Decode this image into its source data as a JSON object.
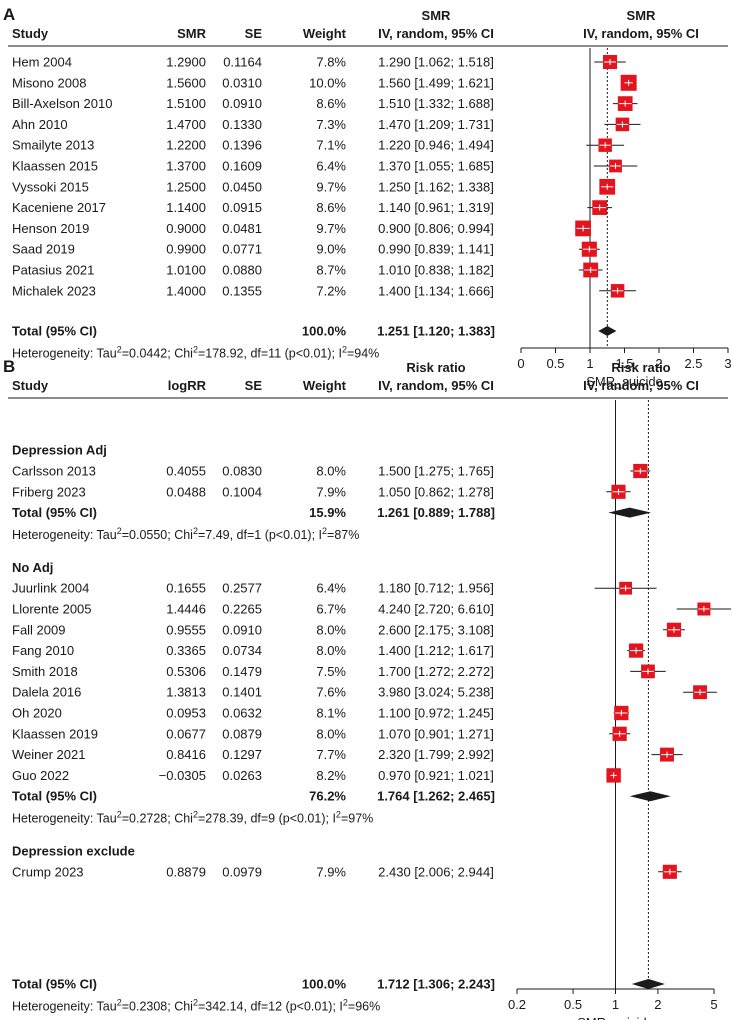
{
  "chart_data": [
    {
      "type": "forest",
      "panel_label": "A",
      "headers": {
        "study": "Study",
        "estimate": "SMR",
        "se": "SE",
        "weight": "Weight",
        "ci_line1": "SMR",
        "ci_line2": "IV, random, 95% CI",
        "plot_line1": "SMR",
        "plot_line2": "IV, random, 95% CI"
      },
      "groups": [
        {
          "name": "",
          "studies": [
            {
              "study": "Hem 2004",
              "est": "1.2900",
              "se": "0.1164",
              "weight": "7.8%",
              "ci": "1.290 [1.062; 1.518]",
              "point": 1.29,
              "lo": 1.062,
              "hi": 1.518,
              "w": 7.8
            },
            {
              "study": "Misono 2008",
              "est": "1.5600",
              "se": "0.0310",
              "weight": "10.0%",
              "ci": "1.560 [1.499; 1.621]",
              "point": 1.56,
              "lo": 1.499,
              "hi": 1.621,
              "w": 10.0
            },
            {
              "study": "Bill-Axelson 2010",
              "est": "1.5100",
              "se": "0.0910",
              "weight": "8.6%",
              "ci": "1.510 [1.332; 1.688]",
              "point": 1.51,
              "lo": 1.332,
              "hi": 1.688,
              "w": 8.6
            },
            {
              "study": "Ahn 2010",
              "est": "1.4700",
              "se": "0.1330",
              "weight": "7.3%",
              "ci": "1.470 [1.209; 1.731]",
              "point": 1.47,
              "lo": 1.209,
              "hi": 1.731,
              "w": 7.3
            },
            {
              "study": "Smailyte 2013",
              "est": "1.2200",
              "se": "0.1396",
              "weight": "7.1%",
              "ci": "1.220 [0.946; 1.494]",
              "point": 1.22,
              "lo": 0.946,
              "hi": 1.494,
              "w": 7.1
            },
            {
              "study": "Klaassen 2015",
              "est": "1.3700",
              "se": "0.1609",
              "weight": "6.4%",
              "ci": "1.370 [1.055; 1.685]",
              "point": 1.37,
              "lo": 1.055,
              "hi": 1.685,
              "w": 6.4
            },
            {
              "study": "Vyssoki 2015",
              "est": "1.2500",
              "se": "0.0450",
              "weight": "9.7%",
              "ci": "1.250 [1.162; 1.338]",
              "point": 1.25,
              "lo": 1.162,
              "hi": 1.338,
              "w": 9.7
            },
            {
              "study": "Kaceniene 2017",
              "est": "1.1400",
              "se": "0.0915",
              "weight": "8.6%",
              "ci": "1.140 [0.961; 1.319]",
              "point": 1.14,
              "lo": 0.961,
              "hi": 1.319,
              "w": 8.6
            },
            {
              "study": "Henson 2019",
              "est": "0.9000",
              "se": "0.0481",
              "weight": "9.7%",
              "ci": "0.900 [0.806; 0.994]",
              "point": 0.9,
              "lo": 0.806,
              "hi": 0.994,
              "w": 9.7
            },
            {
              "study": "Saad 2019",
              "est": "0.9900",
              "se": "0.0771",
              "weight": "9.0%",
              "ci": "0.990 [0.839; 1.141]",
              "point": 0.99,
              "lo": 0.839,
              "hi": 1.141,
              "w": 9.0
            },
            {
              "study": "Patasius 2021",
              "est": "1.0100",
              "se": "0.0880",
              "weight": "8.7%",
              "ci": "1.010 [0.838; 1.182]",
              "point": 1.01,
              "lo": 0.838,
              "hi": 1.182,
              "w": 8.7
            },
            {
              "study": "Michalek 2023",
              "est": "1.4000",
              "se": "0.1355",
              "weight": "7.2%",
              "ci": "1.400 [1.134; 1.666]",
              "point": 1.4,
              "lo": 1.134,
              "hi": 1.666,
              "w": 7.2
            }
          ]
        }
      ],
      "overall": {
        "label": "Total (95% CI)",
        "weight": "100.0%",
        "ci": "1.251 [1.120; 1.383]",
        "point": 1.251,
        "lo": 1.12,
        "hi": 1.383,
        "heterogeneity": {
          "prefix": "Heterogeneity: Tau",
          "tau2": "=0.0442; Chi",
          "chi2": "=178.92, df=11 (p<0.01); I",
          "i2": "=94%",
          "sup": "2"
        }
      },
      "axis": {
        "scale": "linear",
        "min": 0,
        "max": 3,
        "ticks": [
          "0",
          "0.5",
          "1",
          "1.5",
          "2",
          "2.5",
          "3"
        ],
        "tick_values": [
          0,
          0.5,
          1,
          1.5,
          2,
          2.5,
          3
        ],
        "reference": 1,
        "label": "SMR_suicide"
      }
    },
    {
      "type": "forest",
      "panel_label": "B",
      "headers": {
        "study": "Study",
        "estimate": "logRR",
        "se": "SE",
        "weight": "Weight",
        "ci_line1": "Risk ratio",
        "ci_line2": "IV, random, 95% CI",
        "plot_line1": "Risk ratio",
        "plot_line2": "IV, random, 95% CI"
      },
      "groups": [
        {
          "name": "Depression Adj",
          "studies": [
            {
              "study": "Carlsson 2013",
              "est": "0.4055",
              "se": "0.0830",
              "weight": "8.0%",
              "ci": "1.500 [1.275; 1.765]",
              "point": 1.5,
              "lo": 1.275,
              "hi": 1.765,
              "w": 8.0
            },
            {
              "study": "Friberg 2023",
              "est": "0.0488",
              "se": "0.1004",
              "weight": "7.9%",
              "ci": "1.050 [0.862; 1.278]",
              "point": 1.05,
              "lo": 0.862,
              "hi": 1.278,
              "w": 7.9
            }
          ],
          "total": {
            "label": "Total (95% CI)",
            "weight": "15.9%",
            "ci": "1.261 [0.889; 1.788]",
            "point": 1.261,
            "lo": 0.889,
            "hi": 1.788
          },
          "heterogeneity": {
            "prefix": "Heterogeneity: Tau",
            "tau2": "=0.0550; Chi",
            "chi2": "=7.49, df=1 (p<0.01); I",
            "i2": "=87%",
            "sup": "2"
          }
        },
        {
          "name": "No Adj",
          "studies": [
            {
              "study": "Juurlink 2004",
              "est": "0.1655",
              "se": "0.2577",
              "weight": "6.4%",
              "ci": "1.180 [0.712; 1.956]",
              "point": 1.18,
              "lo": 0.712,
              "hi": 1.956,
              "w": 6.4
            },
            {
              "study": "Llorente 2005",
              "est": "1.4446",
              "se": "0.2265",
              "weight": "6.7%",
              "ci": "4.240 [2.720; 6.610]",
              "point": 4.24,
              "lo": 2.72,
              "hi": 6.61,
              "w": 6.7
            },
            {
              "study": "Fall 2009",
              "est": "0.9555",
              "se": "0.0910",
              "weight": "8.0%",
              "ci": "2.600 [2.175; 3.108]",
              "point": 2.6,
              "lo": 2.175,
              "hi": 3.108,
              "w": 8.0
            },
            {
              "study": "Fang 2010",
              "est": "0.3365",
              "se": "0.0734",
              "weight": "8.0%",
              "ci": "1.400 [1.212; 1.617]",
              "point": 1.4,
              "lo": 1.212,
              "hi": 1.617,
              "w": 8.0
            },
            {
              "study": "Smith 2018",
              "est": "0.5306",
              "se": "0.1479",
              "weight": "7.5%",
              "ci": "1.700 [1.272; 2.272]",
              "point": 1.7,
              "lo": 1.272,
              "hi": 2.272,
              "w": 7.5
            },
            {
              "study": "Dalela 2016",
              "est": "1.3813",
              "se": "0.1401",
              "weight": "7.6%",
              "ci": "3.980 [3.024; 5.238]",
              "point": 3.98,
              "lo": 3.024,
              "hi": 5.238,
              "w": 7.6
            },
            {
              "study": "Oh 2020",
              "est": "0.0953",
              "se": "0.0632",
              "weight": "8.1%",
              "ci": "1.100 [0.972; 1.245]",
              "point": 1.1,
              "lo": 0.972,
              "hi": 1.245,
              "w": 8.1
            },
            {
              "study": "Klaassen 2019",
              "est": "0.0677",
              "se": "0.0879",
              "weight": "8.0%",
              "ci": "1.070 [0.901; 1.271]",
              "point": 1.07,
              "lo": 0.901,
              "hi": 1.271,
              "w": 8.0
            },
            {
              "study": "Weiner 2021",
              "est": "0.8416",
              "se": "0.1297",
              "weight": "7.7%",
              "ci": "2.320 [1.799; 2.992]",
              "point": 2.32,
              "lo": 1.799,
              "hi": 2.992,
              "w": 7.7
            },
            {
              "study": "Guo 2022",
              "est": "−0.0305",
              "se": "0.0263",
              "weight": "8.2%",
              "ci": "0.970 [0.921; 1.021]",
              "point": 0.97,
              "lo": 0.921,
              "hi": 1.021,
              "w": 8.2
            }
          ],
          "total": {
            "label": "Total (95% CI)",
            "weight": "76.2%",
            "ci": "1.764 [1.262; 2.465]",
            "point": 1.764,
            "lo": 1.262,
            "hi": 2.465
          },
          "heterogeneity": {
            "prefix": "Heterogeneity: Tau",
            "tau2": "=0.2728; Chi",
            "chi2": "=278.39, df=9 (p<0.01); I",
            "i2": "=97%",
            "sup": "2"
          }
        },
        {
          "name": "Depression exclude",
          "studies": [
            {
              "study": "Crump 2023",
              "est": "0.8879",
              "se": "0.0979",
              "weight": "7.9%",
              "ci": "2.430 [2.006; 2.944]",
              "point": 2.43,
              "lo": 2.006,
              "hi": 2.944,
              "w": 7.9
            }
          ]
        }
      ],
      "overall": {
        "label": "Total (95% CI)",
        "weight": "100.0%",
        "ci": "1.712 [1.306; 2.243]",
        "point": 1.712,
        "lo": 1.306,
        "hi": 2.243,
        "heterogeneity": {
          "prefix": "Heterogeneity: Tau",
          "tau2": "=0.2308; Chi",
          "chi2": "=342.14, df=12 (p<0.01); I",
          "i2": "=96%",
          "sup": "2"
        }
      },
      "axis": {
        "scale": "log",
        "min": 0.2,
        "max": 5,
        "ticks": [
          "0.2",
          "0.5",
          "1",
          "2",
          "5"
        ],
        "tick_values": [
          0.2,
          0.5,
          1,
          2,
          5
        ],
        "reference": 1,
        "label": "SMR_suicide"
      }
    }
  ],
  "colors": {
    "marker": "#e3141d",
    "marker_line": "#ffffff",
    "text": "#1a1a1a",
    "diamond": "#1a1a1a"
  }
}
